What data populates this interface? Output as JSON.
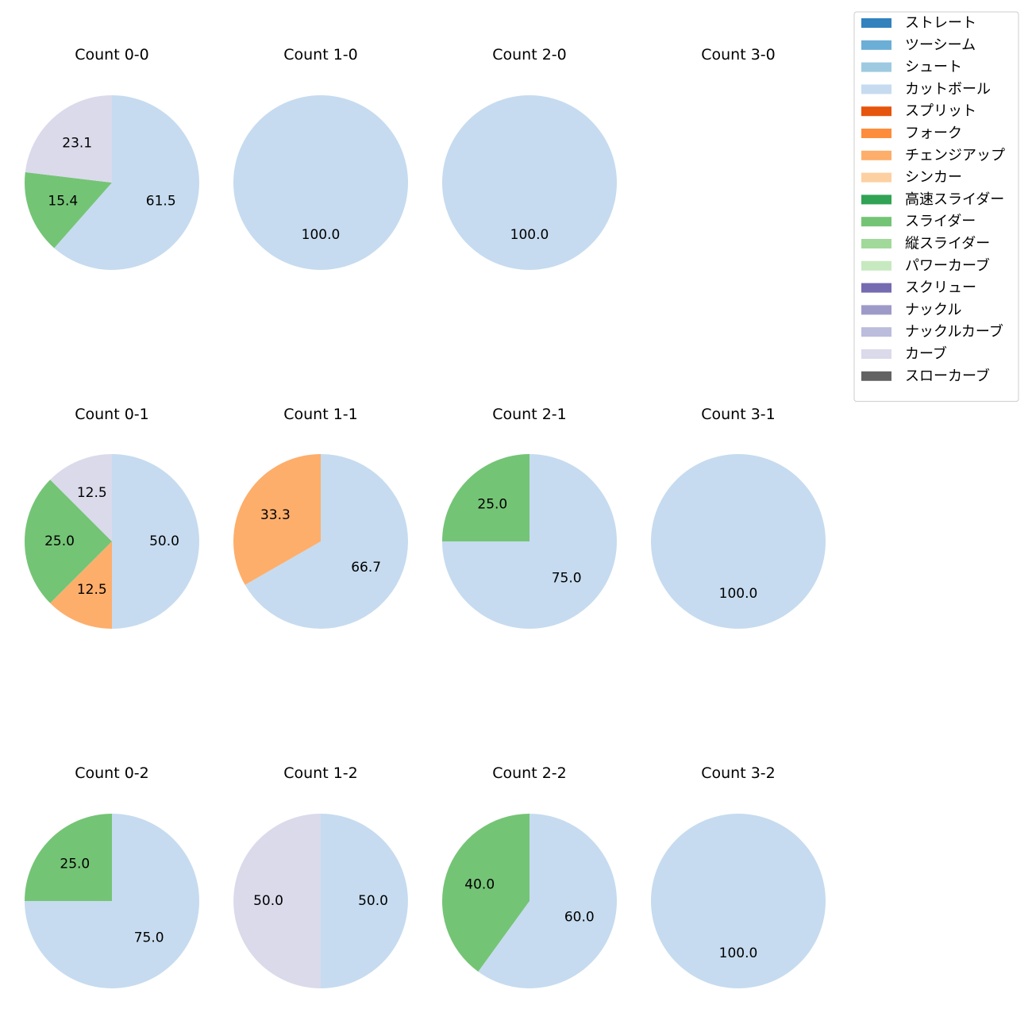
{
  "legend": {
    "items": [
      {
        "label": "ストレート",
        "color": "#3182bd"
      },
      {
        "label": "ツーシーム",
        "color": "#6baed6"
      },
      {
        "label": "シュート",
        "color": "#9ecae1"
      },
      {
        "label": "カットボール",
        "color": "#c6dbef"
      },
      {
        "label": "スプリット",
        "color": "#e6550d"
      },
      {
        "label": "フォーク",
        "color": "#fd8d3c"
      },
      {
        "label": "チェンジアップ",
        "color": "#fdae6b"
      },
      {
        "label": "シンカー",
        "color": "#fdd0a2"
      },
      {
        "label": "高速スライダー",
        "color": "#31a354"
      },
      {
        "label": "スライダー",
        "color": "#74c476"
      },
      {
        "label": "縦スライダー",
        "color": "#a1d99b"
      },
      {
        "label": "パワーカーブ",
        "color": "#c7e9c0"
      },
      {
        "label": "スクリュー",
        "color": "#756bb1"
      },
      {
        "label": "ナックル",
        "color": "#9e9ac8"
      },
      {
        "label": "ナックルカーブ",
        "color": "#bcbddc"
      },
      {
        "label": "カーブ",
        "color": "#dadaeb"
      },
      {
        "label": "スローカーブ",
        "color": "#636363"
      }
    ]
  },
  "chart_data": [
    {
      "type": "pie",
      "title": "Count 0-0",
      "slices": [
        {
          "pitch": "カットボール",
          "value": 61.5,
          "label": "61.5"
        },
        {
          "pitch": "スライダー",
          "value": 15.4,
          "label": "15.4"
        },
        {
          "pitch": "カーブ",
          "value": 23.1,
          "label": "23.1"
        }
      ]
    },
    {
      "type": "pie",
      "title": "Count 1-0",
      "slices": [
        {
          "pitch": "カットボール",
          "value": 100.0,
          "label": "100.0"
        }
      ]
    },
    {
      "type": "pie",
      "title": "Count 2-0",
      "slices": [
        {
          "pitch": "カットボール",
          "value": 100.0,
          "label": "100.0"
        }
      ]
    },
    {
      "type": "pie",
      "title": "Count 3-0",
      "slices": []
    },
    {
      "type": "pie",
      "title": "Count 0-1",
      "slices": [
        {
          "pitch": "カットボール",
          "value": 50.0,
          "label": "50.0"
        },
        {
          "pitch": "チェンジアップ",
          "value": 12.5,
          "label": "12.5"
        },
        {
          "pitch": "スライダー",
          "value": 25.0,
          "label": "25.0"
        },
        {
          "pitch": "カーブ",
          "value": 12.5,
          "label": "12.5"
        }
      ]
    },
    {
      "type": "pie",
      "title": "Count 1-1",
      "slices": [
        {
          "pitch": "カットボール",
          "value": 66.7,
          "label": "66.7"
        },
        {
          "pitch": "チェンジアップ",
          "value": 33.3,
          "label": "33.3"
        }
      ]
    },
    {
      "type": "pie",
      "title": "Count 2-1",
      "slices": [
        {
          "pitch": "カットボール",
          "value": 75.0,
          "label": "75.0"
        },
        {
          "pitch": "スライダー",
          "value": 25.0,
          "label": "25.0"
        }
      ]
    },
    {
      "type": "pie",
      "title": "Count 3-1",
      "slices": [
        {
          "pitch": "カットボール",
          "value": 100.0,
          "label": "100.0"
        }
      ]
    },
    {
      "type": "pie",
      "title": "Count 0-2",
      "slices": [
        {
          "pitch": "カットボール",
          "value": 75.0,
          "label": "75.0"
        },
        {
          "pitch": "スライダー",
          "value": 25.0,
          "label": "25.0"
        }
      ]
    },
    {
      "type": "pie",
      "title": "Count 1-2",
      "slices": [
        {
          "pitch": "カットボール",
          "value": 50.0,
          "label": "50.0"
        },
        {
          "pitch": "カーブ",
          "value": 50.0,
          "label": "50.0"
        }
      ]
    },
    {
      "type": "pie",
      "title": "Count 2-2",
      "slices": [
        {
          "pitch": "カットボール",
          "value": 60.0,
          "label": "60.0"
        },
        {
          "pitch": "スライダー",
          "value": 40.0,
          "label": "40.0"
        }
      ]
    },
    {
      "type": "pie",
      "title": "Count 3-2",
      "slices": [
        {
          "pitch": "カットボール",
          "value": 100.0,
          "label": "100.0"
        }
      ]
    }
  ]
}
